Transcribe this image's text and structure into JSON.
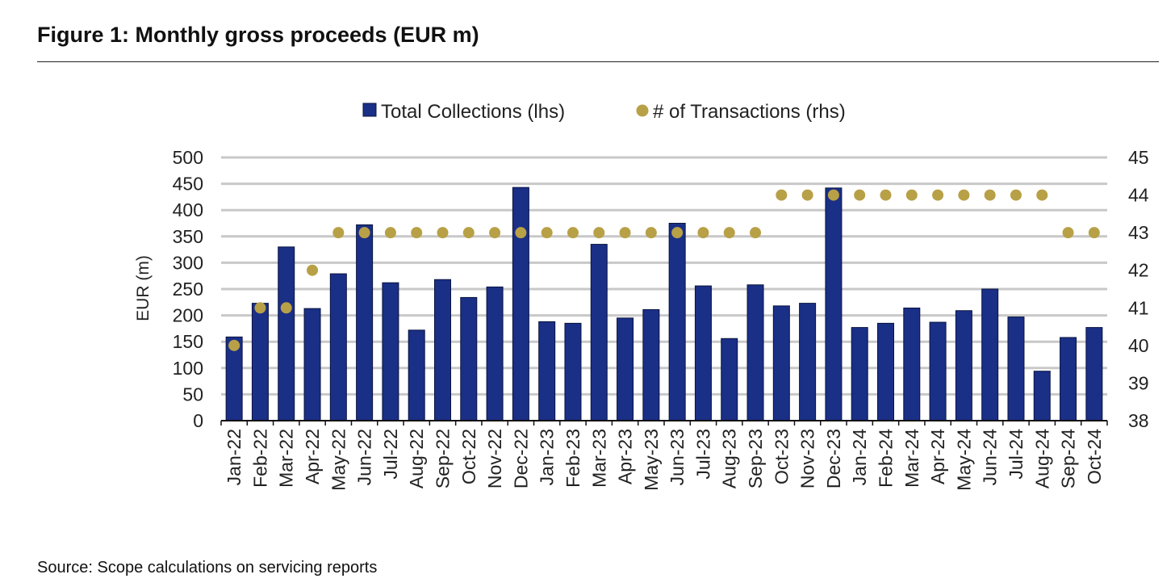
{
  "figure": {
    "title": "Figure 1: Monthly gross proceeds (EUR m)",
    "source": "Source: Scope calculations on servicing reports"
  },
  "chart_data": {
    "type": "bar",
    "categories": [
      "Jan-22",
      "Feb-22",
      "Mar-22",
      "Apr-22",
      "May-22",
      "Jun-22",
      "Jul-22",
      "Aug-22",
      "Sep-22",
      "Oct-22",
      "Nov-22",
      "Dec-22",
      "Jan-23",
      "Feb-23",
      "Mar-23",
      "Apr-23",
      "May-23",
      "Jun-23",
      "Jul-23",
      "Aug-23",
      "Sep-23",
      "Oct-23",
      "Nov-23",
      "Dec-23",
      "Jan-24",
      "Feb-24",
      "Mar-24",
      "Apr-24",
      "May-24",
      "Jun-24",
      "Jul-24",
      "Aug-24",
      "Sep-24",
      "Oct-24"
    ],
    "series": [
      {
        "name": "Total Collections (lhs)",
        "type": "bar",
        "axis": "left",
        "color": "#1a2f86",
        "values": [
          159,
          223,
          330,
          213,
          279,
          372,
          262,
          172,
          268,
          234,
          254,
          443,
          188,
          185,
          335,
          195,
          211,
          375,
          256,
          156,
          258,
          218,
          223,
          442,
          177,
          185,
          214,
          187,
          209,
          250,
          197,
          94,
          158,
          177
        ]
      },
      {
        "name": "# of Transactions (rhs)",
        "type": "scatter",
        "axis": "right",
        "color": "#b8a046",
        "values": [
          40,
          41,
          41,
          42,
          43,
          43,
          43,
          43,
          43,
          43,
          43,
          43,
          43,
          43,
          43,
          43,
          43,
          43,
          43,
          43,
          43,
          44,
          44,
          44,
          44,
          44,
          44,
          44,
          44,
          44,
          44,
          44,
          43,
          43
        ]
      }
    ],
    "ylabel": "EUR (m)",
    "ylim": [
      0,
      500
    ],
    "yticks": [
      0,
      50,
      100,
      150,
      200,
      250,
      300,
      350,
      400,
      450,
      500
    ],
    "y2lim": [
      38,
      45
    ],
    "y2ticks": [
      38,
      39,
      40,
      41,
      42,
      43,
      44,
      45
    ],
    "grid": true,
    "legend": "top-center"
  }
}
